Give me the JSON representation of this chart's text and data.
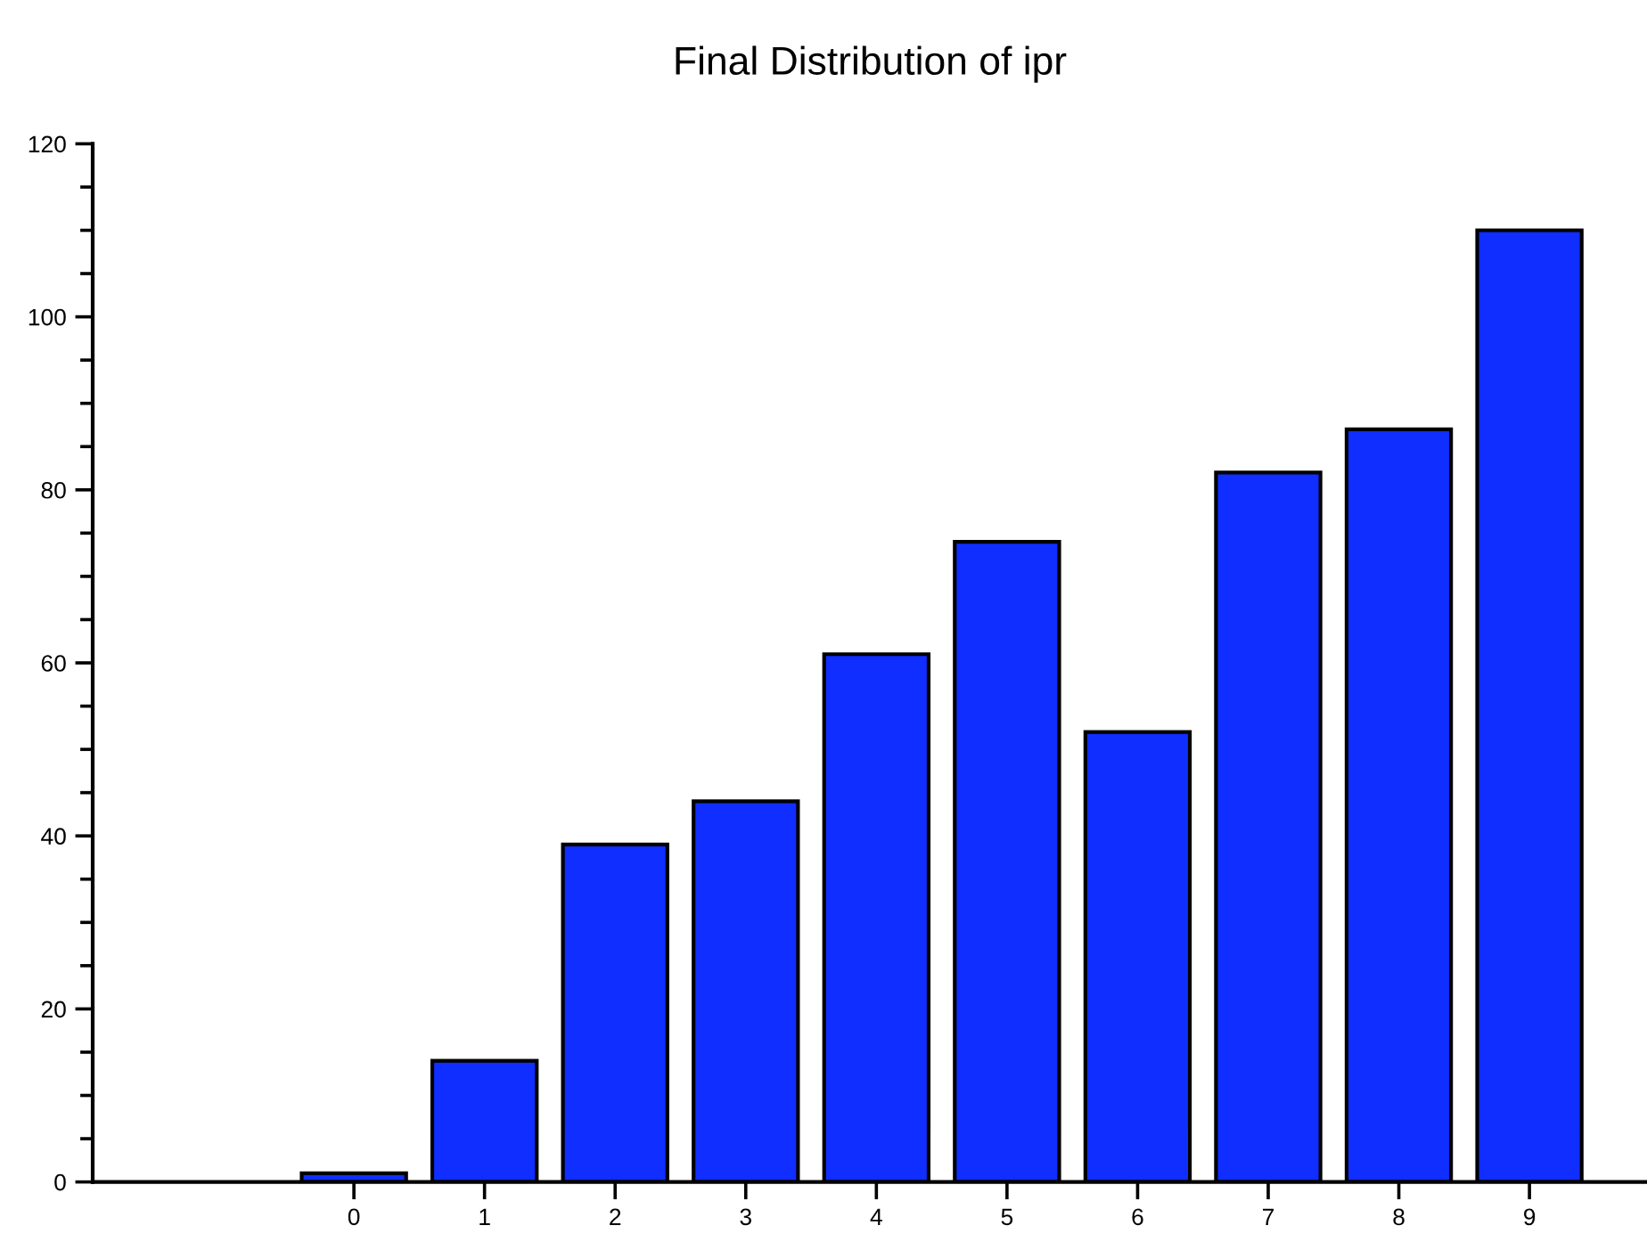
{
  "chart_data": {
    "type": "bar",
    "title": "Final Distribution of ipr",
    "x": [
      0,
      1,
      2,
      3,
      4,
      5,
      6,
      7,
      8,
      9
    ],
    "values": [
      1,
      14,
      39,
      44,
      61,
      74,
      52,
      82,
      87,
      110
    ],
    "color": "#0f2eff",
    "xlim": [
      -2,
      9.9
    ],
    "xticks": [
      0,
      1,
      2,
      3,
      4,
      5,
      6,
      7,
      8,
      9
    ],
    "ylim": [
      0,
      120
    ],
    "yticks": [
      0,
      20,
      40,
      60,
      80,
      100,
      120
    ],
    "grid": false
  }
}
